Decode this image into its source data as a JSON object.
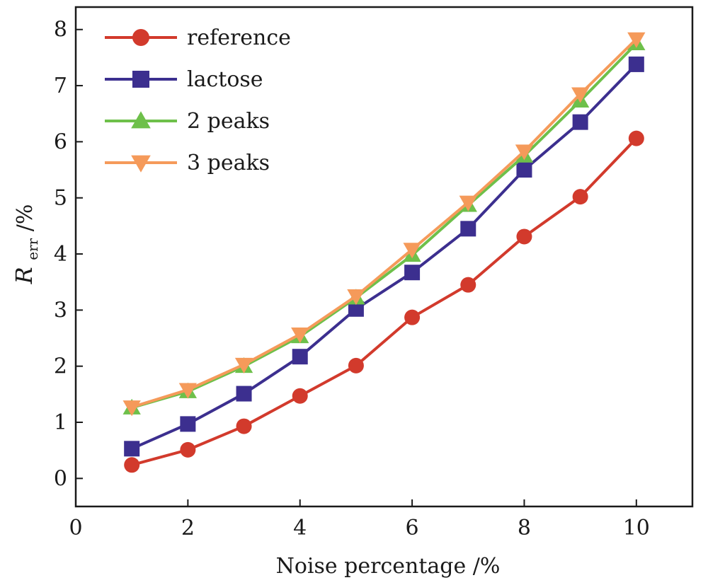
{
  "chart_data": {
    "type": "line",
    "xlabel": "Noise percentage /%",
    "ylabel_main": "R",
    "ylabel_sub": "err",
    "ylabel_unit": " /%",
    "xlim": [
      0,
      11
    ],
    "ylim": [
      -0.5,
      8.4
    ],
    "xticks": [
      0,
      2,
      4,
      6,
      8,
      10
    ],
    "yticks": [
      0,
      1,
      2,
      3,
      4,
      5,
      6,
      7,
      8
    ],
    "grid": false,
    "legend_position": "top-left",
    "x": [
      1,
      2,
      3,
      4,
      5,
      6,
      7,
      8,
      9,
      10
    ],
    "series": [
      {
        "name": "reference",
        "marker": "circle",
        "color": "#d23a2c",
        "values": [
          0.24,
          0.51,
          0.93,
          1.47,
          2.01,
          2.87,
          3.45,
          4.31,
          5.02,
          6.06
        ]
      },
      {
        "name": "lactose",
        "marker": "square",
        "color": "#3c2f8f",
        "values": [
          0.53,
          0.97,
          1.51,
          2.17,
          3.02,
          3.67,
          4.45,
          5.5,
          6.35,
          7.38
        ]
      },
      {
        "name": "2 peaks",
        "marker": "triangle-up",
        "color": "#6ec04a",
        "values": [
          1.26,
          1.55,
          2.0,
          2.53,
          3.22,
          3.98,
          4.87,
          5.75,
          6.73,
          7.75
        ]
      },
      {
        "name": "3 peaks",
        "marker": "triangle-down",
        "color": "#f59a5a",
        "values": [
          1.27,
          1.58,
          2.03,
          2.57,
          3.25,
          4.08,
          4.92,
          5.83,
          6.85,
          7.83
        ]
      }
    ]
  }
}
